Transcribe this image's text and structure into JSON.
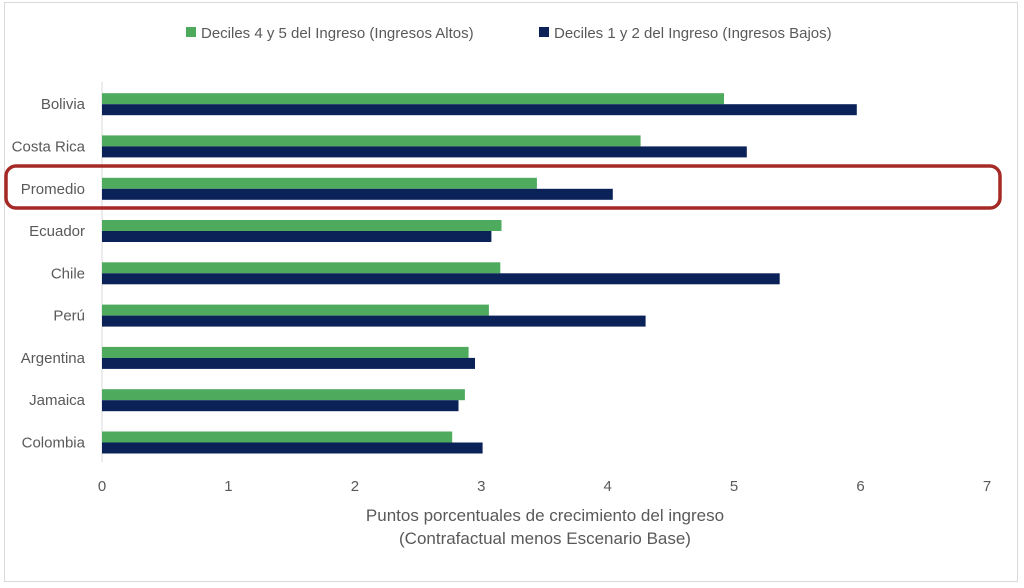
{
  "chart_data": {
    "type": "bar",
    "orientation": "horizontal",
    "title": "",
    "categories": [
      "Bolivia",
      "Costa Rica",
      "Promedio",
      "Ecuador",
      "Chile",
      "Perú",
      "Argentina",
      "Jamaica",
      "Colombia"
    ],
    "series": [
      {
        "name": "Deciles 4 y 5 del Ingreso (Ingresos Altos)",
        "color": "#4EAA5C",
        "values": [
          4.92,
          4.26,
          3.44,
          3.16,
          3.15,
          3.06,
          2.9,
          2.87,
          2.77
        ]
      },
      {
        "name": "Deciles 1 y 2 del Ingreso (Ingresos Bajos)",
        "color": "#0B2259",
        "values": [
          5.97,
          5.1,
          4.04,
          3.08,
          5.36,
          4.3,
          2.95,
          2.82,
          3.01
        ]
      }
    ],
    "xlabel": "Puntos porcentuales de crecimiento del ingreso",
    "xlabel_line2": "(Contrafactual menos Escenario Base)",
    "ylabel": "",
    "xlim": [
      0,
      7
    ],
    "xticks": [
      "0",
      "1",
      "2",
      "3",
      "4",
      "5",
      "6",
      "7"
    ],
    "grid": false,
    "legend_position": "top",
    "highlight": {
      "category": "Promedio",
      "color": "#A52A26"
    }
  }
}
